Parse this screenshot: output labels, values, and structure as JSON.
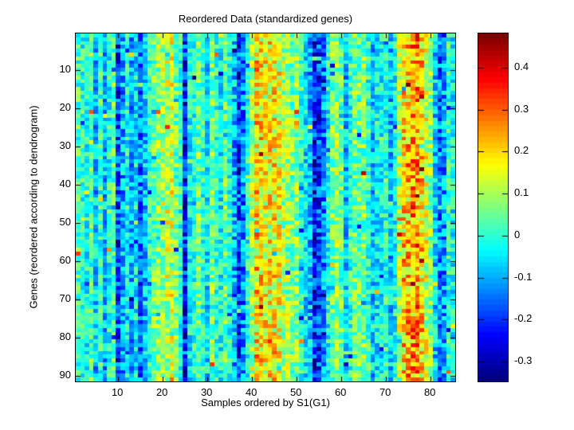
{
  "chart_data": {
    "type": "heatmap",
    "title": "Reordered Data (standardized genes)",
    "xlabel": "Samples ordered by S1(G1)",
    "ylabel": "Genes (reordered according to dendrogram)",
    "colormap": "jet",
    "color_levels": 64,
    "vmin": -0.347,
    "vmax": 0.481,
    "n_rows": 91,
    "n_cols": 85,
    "x_ticks": [
      10,
      20,
      30,
      40,
      50,
      60,
      70,
      80
    ],
    "y_ticks": [
      10,
      20,
      30,
      40,
      50,
      60,
      70,
      80,
      90
    ],
    "colorbar_ticks": [
      0.4,
      0.3,
      0.2,
      0.1,
      0,
      -0.1,
      -0.2,
      -0.3
    ],
    "legend_position": "right-colorbar",
    "grid": false,
    "column_means": [
      0.02,
      0.0,
      -0.02,
      0.03,
      -0.08,
      0.0,
      -0.09,
      -0.02,
      0.04,
      -0.2,
      -0.1,
      -0.02,
      -0.1,
      -0.04,
      -0.14,
      -0.08,
      0.0,
      0.05,
      0.07,
      0.1,
      0.12,
      0.13,
      0.05,
      0.0,
      -0.22,
      -0.03,
      0.0,
      0.05,
      0.0,
      -0.05,
      0.05,
      0.0,
      -0.03,
      0.04,
      -0.01,
      -0.1,
      -0.2,
      -0.14,
      -0.02,
      0.1,
      0.2,
      0.18,
      0.16,
      0.17,
      0.18,
      0.15,
      0.1,
      0.1,
      0.05,
      0.07,
      0.0,
      -0.05,
      -0.1,
      -0.24,
      -0.2,
      -0.13,
      -0.02,
      0.05,
      0.08,
      0.04,
      -0.08,
      0.0,
      0.05,
      0.05,
      0.06,
      0.0,
      -0.08,
      -0.04,
      -0.03,
      0.0,
      -0.08,
      -0.02,
      0.1,
      0.2,
      0.22,
      0.25,
      0.26,
      0.2,
      0.13,
      0.08,
      -0.06,
      -0.15,
      -0.12,
      0.0,
      -0.03
    ],
    "noise": {
      "seed": 7,
      "base_amp": 0.09,
      "amp_scale": 0.22,
      "spike_prob": 0.015,
      "spike_min": 0.12,
      "spike_max": 0.26
    },
    "axis_color": "#000000",
    "background_color": "#ffffff"
  }
}
